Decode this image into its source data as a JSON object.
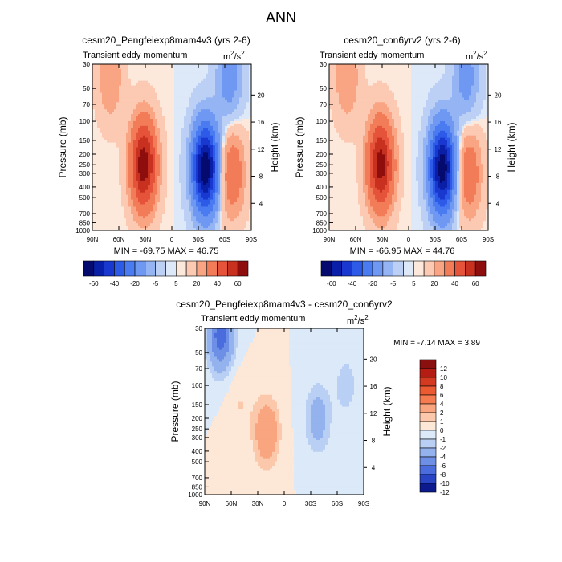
{
  "page_title": "ANN",
  "chart_data": [
    {
      "type": "heatmap",
      "title": "cesm20_Pengfeiexp8mam4v3 (yrs 2-6)",
      "subtitle_left": "Transient eddy momentum",
      "units_base": "m",
      "units_exp1": "2",
      "units_mid": "/s",
      "units_exp2": "2",
      "ylabel": "Pressure (mb)",
      "ylabel_right": "Height (km)",
      "x_ticks": [
        "90N",
        "60N",
        "30N",
        "0",
        "30S",
        "60S",
        "90S"
      ],
      "y_ticks": [
        "30",
        "50",
        "70",
        "100",
        "150",
        "200",
        "250",
        "300",
        "400",
        "500",
        "700",
        "850",
        "1000"
      ],
      "height_ticks": [
        "20",
        "16",
        "12",
        "8",
        "4"
      ],
      "stats": "MIN = -69.75  MAX =  46.75",
      "colorbar_labels": [
        "-60",
        "-40",
        "-20",
        "-5",
        "5",
        "20",
        "40",
        "60"
      ],
      "features": [
        {
          "lat": 32,
          "p": 250,
          "value": 46.75
        },
        {
          "lat": -38,
          "p": 270,
          "value": -69.75
        },
        {
          "lat": -68,
          "p": 300,
          "value": 18
        },
        {
          "lat": 70,
          "p": 40,
          "value": 10
        },
        {
          "lat": -65,
          "p": 40,
          "value": -15
        }
      ]
    },
    {
      "type": "heatmap",
      "title": "cesm20_con6yrv2 (yrs 2-6)",
      "subtitle_left": "Transient eddy momentum",
      "units_base": "m",
      "units_exp1": "2",
      "units_mid": "/s",
      "units_exp2": "2",
      "ylabel": "Pressure (mb)",
      "ylabel_right": "Height (km)",
      "x_ticks": [
        "90N",
        "60N",
        "30N",
        "0",
        "30S",
        "60S",
        "90S"
      ],
      "y_ticks": [
        "30",
        "50",
        "70",
        "100",
        "150",
        "200",
        "250",
        "300",
        "400",
        "500",
        "700",
        "850",
        "1000"
      ],
      "height_ticks": [
        "20",
        "16",
        "12",
        "8",
        "4"
      ],
      "stats": "MIN = -66.95  MAX =  44.76",
      "colorbar_labels": [
        "-60",
        "-40",
        "-20",
        "-5",
        "5",
        "20",
        "40",
        "60"
      ],
      "features": [
        {
          "lat": 32,
          "p": 250,
          "value": 44.76
        },
        {
          "lat": -38,
          "p": 270,
          "value": -66.95
        },
        {
          "lat": -68,
          "p": 300,
          "value": 17
        },
        {
          "lat": 70,
          "p": 40,
          "value": 10
        },
        {
          "lat": -65,
          "p": 40,
          "value": -14
        }
      ]
    },
    {
      "type": "heatmap",
      "title": "cesm20_Pengfeiexp8mam4v3 - cesm20_con6yrv2",
      "subtitle_left": "Transient eddy momentum",
      "units_base": "m",
      "units_exp1": "2",
      "units_mid": "/s",
      "units_exp2": "2",
      "ylabel": "Pressure (mb)",
      "ylabel_right": "Height (km)",
      "x_ticks": [
        "90N",
        "60N",
        "30N",
        "0",
        "30S",
        "60S",
        "90S"
      ],
      "y_ticks": [
        "30",
        "50",
        "70",
        "100",
        "150",
        "200",
        "250",
        "300",
        "400",
        "500",
        "700",
        "850",
        "1000"
      ],
      "height_ticks": [
        "20",
        "16",
        "12",
        "8",
        "4"
      ],
      "stats": "MIN = -7.14  MAX =   3.89",
      "colorbar_labels": [
        "12",
        "10",
        "8",
        "6",
        "4",
        "2",
        "1",
        "0",
        "-1",
        "-2",
        "-4",
        "-6",
        "-8",
        "-10",
        "-12"
      ],
      "features": [
        {
          "lat": 72,
          "p": 35,
          "value": -7.14
        },
        {
          "lat": 20,
          "p": 270,
          "value": 3.89
        },
        {
          "lat": -38,
          "p": 200,
          "value": -3
        },
        {
          "lat": -70,
          "p": 100,
          "value": -1.5
        },
        {
          "lat": 50,
          "p": 150,
          "value": 1
        }
      ]
    }
  ],
  "colors": {
    "neg_dark": "#08188c",
    "neg_mid": "#4a78e8",
    "neg_light": "#d6e6f8",
    "pos_light": "#fde6d8",
    "pos_mid": "#f26c4a",
    "pos_dark": "#8c0a0a"
  }
}
